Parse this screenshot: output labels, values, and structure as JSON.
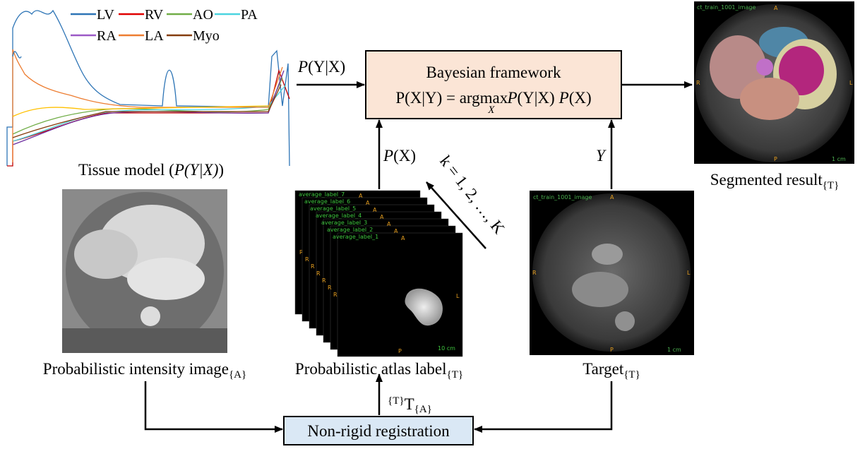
{
  "tissue_model": {
    "legend": [
      "LV",
      "RV",
      "AO",
      "PA",
      "RA",
      "LA",
      "Myo"
    ],
    "caption": {
      "prefix": "Tissue model (",
      "math": "P(Y|X)",
      "suffix": ")"
    }
  },
  "bayesian": {
    "title": "Bayesian framework",
    "formula": {
      "lhs": "P(X|Y) = argmax",
      "sub": "X",
      "likelihood": "P",
      "likelihood_arg": "(Y|X)",
      "prior": "P",
      "prior_arg": "(X)"
    }
  },
  "arrows": {
    "likelihood": {
      "fn": "P",
      "arg": "(Y|X)"
    },
    "prior": {
      "fn": "P",
      "arg": "(X)"
    },
    "target": "Y",
    "iteration": "k = 1, 2, …, K",
    "transform": {
      "sup": "{T}",
      "main": "T",
      "sub": "{A}"
    }
  },
  "images": {
    "segmented": {
      "caption": "Segmented result",
      "sub": "{T}",
      "tag": "ct_train_1001_image",
      "a": "A",
      "r": "R",
      "l": "L",
      "p": "P",
      "scale": "1 cm"
    },
    "intensity": {
      "caption": "Probabilistic intensity image",
      "sub": "{A}"
    },
    "atlas": {
      "caption": "Probabilistic atlas label",
      "sub": "{T}",
      "layers": [
        "average_label_7",
        "average_label_6",
        "average_label_5",
        "average_label_4",
        "average_label_3",
        "average_label_2",
        "average_label_1"
      ],
      "a": "A",
      "r": "R",
      "l": "L",
      "p": "P",
      "scale": "10 cm"
    },
    "target": {
      "caption": "Target",
      "sub": "{T}",
      "tag": "ct_train_1001_image",
      "a": "A",
      "r": "R",
      "l": "L",
      "p": "P",
      "scale": "1 cm"
    }
  },
  "registration": "Non-rigid registration"
}
